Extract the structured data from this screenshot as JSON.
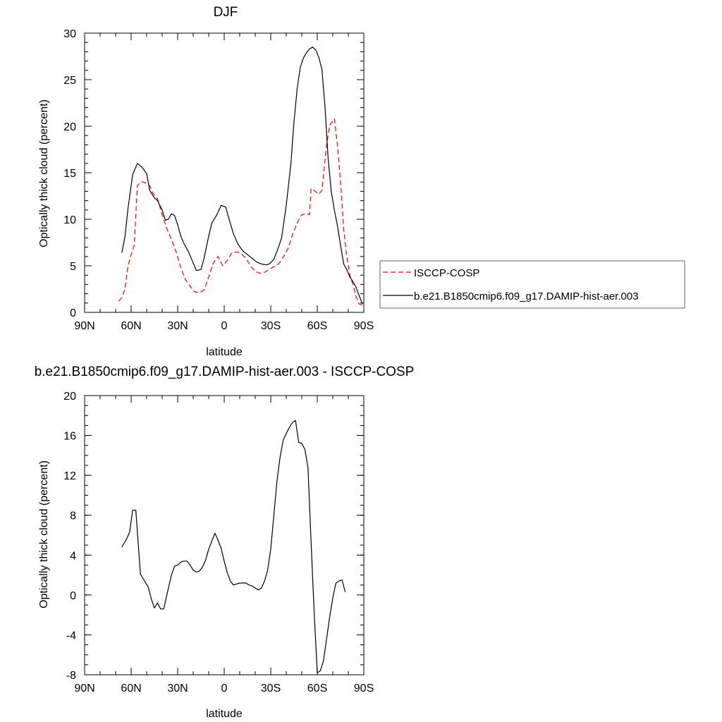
{
  "chart_data": [
    {
      "type": "line",
      "title": "DJF",
      "xlabel": "latitude",
      "ylabel": "Optically thick cloud (percent)",
      "xlim": [
        -90,
        90
      ],
      "ylim": [
        0,
        30
      ],
      "x_tick_values": [
        -90,
        -60,
        -30,
        0,
        30,
        60,
        90
      ],
      "x_tick_labels": [
        "90N",
        "60N",
        "30N",
        "0",
        "30S",
        "60S",
        "90S"
      ],
      "y_ticks": [
        "0",
        "5",
        "10",
        "15",
        "20",
        "25",
        "30"
      ],
      "legend": {
        "position": "right"
      },
      "series": [
        {
          "name": "ISCCP-COSP",
          "color": "#ff0000",
          "dash": "dashed",
          "points": [
            [
              -68,
              1.2
            ],
            [
              -66,
              1.6
            ],
            [
              -64,
              2.5
            ],
            [
              -62,
              5.0
            ],
            [
              -60,
              6.2
            ],
            [
              -58,
              7.2
            ],
            [
              -56,
              13.6
            ],
            [
              -54,
              14.0
            ],
            [
              -52,
              14.0
            ],
            [
              -48,
              13.6
            ],
            [
              -46,
              12.8
            ],
            [
              -43,
              12.2
            ],
            [
              -40,
              10.5
            ],
            [
              -37,
              9.0
            ],
            [
              -34,
              7.8
            ],
            [
              -31,
              6.5
            ],
            [
              -28,
              4.8
            ],
            [
              -25,
              3.5
            ],
            [
              -22,
              2.8
            ],
            [
              -19,
              2.2
            ],
            [
              -16,
              2.1
            ],
            [
              -13,
              2.4
            ],
            [
              -10,
              3.8
            ],
            [
              -7,
              5.3
            ],
            [
              -4,
              6.0
            ],
            [
              -1,
              5.0
            ],
            [
              2,
              5.6
            ],
            [
              5,
              6.4
            ],
            [
              8,
              6.5
            ],
            [
              11,
              6.3
            ],
            [
              14,
              5.8
            ],
            [
              17,
              5.0
            ],
            [
              20,
              4.4
            ],
            [
              23,
              4.2
            ],
            [
              26,
              4.3
            ],
            [
              29,
              4.6
            ],
            [
              32,
              4.9
            ],
            [
              35,
              5.2
            ],
            [
              38,
              5.9
            ],
            [
              41,
              6.8
            ],
            [
              44,
              8.3
            ],
            [
              47,
              9.6
            ],
            [
              50,
              10.5
            ],
            [
              53,
              10.6
            ],
            [
              55,
              10.5
            ],
            [
              56,
              13.3
            ],
            [
              58,
              13.1
            ],
            [
              61,
              12.7
            ],
            [
              63,
              13.1
            ],
            [
              66,
              18.0
            ],
            [
              68,
              20.1
            ],
            [
              71,
              20.8
            ],
            [
              73,
              18.0
            ],
            [
              75,
              14.0
            ],
            [
              77,
              9.0
            ],
            [
              79,
              6.0
            ],
            [
              81,
              4.0
            ],
            [
              83,
              3.0
            ],
            [
              85,
              1.7
            ],
            [
              87,
              0.9
            ],
            [
              89,
              0.8
            ]
          ]
        },
        {
          "name": "b.e21.B1850cmip6.f09_g17.DAMIP-hist-aer.003",
          "color": "#000000",
          "dash": "solid",
          "points": [
            [
              -66,
              6.4
            ],
            [
              -64,
              8.1
            ],
            [
              -62,
              11.2
            ],
            [
              -59,
              14.8
            ],
            [
              -56,
              16.0
            ],
            [
              -53,
              15.6
            ],
            [
              -50,
              14.9
            ],
            [
              -48,
              13.1
            ],
            [
              -45,
              12.3
            ],
            [
              -43,
              12.0
            ],
            [
              -40,
              11.0
            ],
            [
              -38,
              9.9
            ],
            [
              -36,
              10.0
            ],
            [
              -34,
              10.6
            ],
            [
              -32,
              10.4
            ],
            [
              -30,
              9.4
            ],
            [
              -28,
              8.2
            ],
            [
              -26,
              7.4
            ],
            [
              -23,
              6.5
            ],
            [
              -20,
              5.3
            ],
            [
              -18,
              4.5
            ],
            [
              -15,
              4.6
            ],
            [
              -13,
              5.8
            ],
            [
              -10,
              8.2
            ],
            [
              -8,
              9.6
            ],
            [
              -5,
              10.4
            ],
            [
              -2,
              11.5
            ],
            [
              1,
              11.3
            ],
            [
              3,
              10.1
            ],
            [
              6,
              8.4
            ],
            [
              9,
              7.3
            ],
            [
              12,
              6.6
            ],
            [
              15,
              6.2
            ],
            [
              18,
              5.8
            ],
            [
              21,
              5.4
            ],
            [
              24,
              5.2
            ],
            [
              27,
              5.1
            ],
            [
              29,
              5.2
            ],
            [
              32,
              5.7
            ],
            [
              35,
              7.0
            ],
            [
              37,
              8.0
            ],
            [
              40,
              11.5
            ],
            [
              43,
              16.0
            ],
            [
              45,
              20.5
            ],
            [
              47,
              24.0
            ],
            [
              49,
              26.3
            ],
            [
              51,
              27.3
            ],
            [
              53,
              27.9
            ],
            [
              55,
              28.3
            ],
            [
              57,
              28.5
            ],
            [
              59,
              28.2
            ],
            [
              61,
              27.4
            ],
            [
              63,
              26.1
            ],
            [
              65,
              22.0
            ],
            [
              67,
              16.5
            ],
            [
              69,
              13.0
            ],
            [
              71,
              11.0
            ],
            [
              73,
              9.3
            ],
            [
              75,
              7.2
            ],
            [
              77,
              5.2
            ],
            [
              79,
              4.6
            ],
            [
              81,
              3.8
            ],
            [
              83,
              3.3
            ],
            [
              85,
              2.7
            ],
            [
              87,
              1.8
            ],
            [
              89,
              0.9
            ]
          ]
        }
      ]
    },
    {
      "type": "line",
      "title": "b.e21.B1850cmip6.f09_g17.DAMIP-hist-aer.003 - ISCCP-COSP",
      "xlabel": "latitude",
      "ylabel": "Optically thick cloud (percent)",
      "xlim": [
        -90,
        90
      ],
      "ylim": [
        -8,
        20
      ],
      "x_tick_values": [
        -90,
        -60,
        -30,
        0,
        30,
        60,
        90
      ],
      "x_tick_labels": [
        "90N",
        "60N",
        "30N",
        "0",
        "30S",
        "60S",
        "90S"
      ],
      "y_ticks": [
        "-8",
        "-4",
        "0",
        "4",
        "8",
        "12",
        "16",
        "20"
      ],
      "series": [
        {
          "color": "#000000",
          "dash": "solid",
          "points": [
            [
              -66,
              4.8
            ],
            [
              -63,
              5.6
            ],
            [
              -61,
              6.3
            ],
            [
              -59,
              8.5
            ],
            [
              -57,
              8.5
            ],
            [
              -54,
              2.1
            ],
            [
              -51,
              1.3
            ],
            [
              -49,
              0.8
            ],
            [
              -47,
              -0.4
            ],
            [
              -45,
              -1.3
            ],
            [
              -43,
              -0.8
            ],
            [
              -41,
              -1.4
            ],
            [
              -39,
              -1.4
            ],
            [
              -37,
              0.0
            ],
            [
              -34,
              2.0
            ],
            [
              -32,
              2.9
            ],
            [
              -30,
              3.0
            ],
            [
              -28,
              3.3
            ],
            [
              -26,
              3.4
            ],
            [
              -24,
              3.4
            ],
            [
              -22,
              3.0
            ],
            [
              -20,
              2.5
            ],
            [
              -18,
              2.3
            ],
            [
              -16,
              2.4
            ],
            [
              -14,
              2.8
            ],
            [
              -12,
              3.5
            ],
            [
              -10,
              4.6
            ],
            [
              -8,
              5.4
            ],
            [
              -6,
              6.2
            ],
            [
              -4,
              5.5
            ],
            [
              -2,
              4.7
            ],
            [
              0,
              3.4
            ],
            [
              2,
              2.2
            ],
            [
              4,
              1.4
            ],
            [
              6,
              1.0
            ],
            [
              8,
              1.1
            ],
            [
              10,
              1.2
            ],
            [
              12,
              1.2
            ],
            [
              14,
              1.2
            ],
            [
              16,
              1.0
            ],
            [
              18,
              0.9
            ],
            [
              20,
              0.7
            ],
            [
              22,
              0.5
            ],
            [
              24,
              0.7
            ],
            [
              26,
              1.4
            ],
            [
              28,
              2.5
            ],
            [
              30,
              4.6
            ],
            [
              32,
              8.0
            ],
            [
              34,
              11.4
            ],
            [
              36,
              13.8
            ],
            [
              38,
              15.5
            ],
            [
              40,
              16.2
            ],
            [
              42,
              16.8
            ],
            [
              44,
              17.3
            ],
            [
              46,
              17.5
            ],
            [
              48,
              15.3
            ],
            [
              50,
              15.2
            ],
            [
              52,
              14.6
            ],
            [
              54,
              12.8
            ],
            [
              56,
              5.3
            ],
            [
              58,
              -1.8
            ],
            [
              60,
              -7.8
            ],
            [
              62,
              -7.6
            ],
            [
              64,
              -6.6
            ],
            [
              66,
              -4.4
            ],
            [
              68,
              -2.2
            ],
            [
              70,
              -0.3
            ],
            [
              72,
              1.2
            ],
            [
              74,
              1.4
            ],
            [
              76,
              1.5
            ],
            [
              78,
              0.3
            ]
          ]
        }
      ]
    }
  ]
}
